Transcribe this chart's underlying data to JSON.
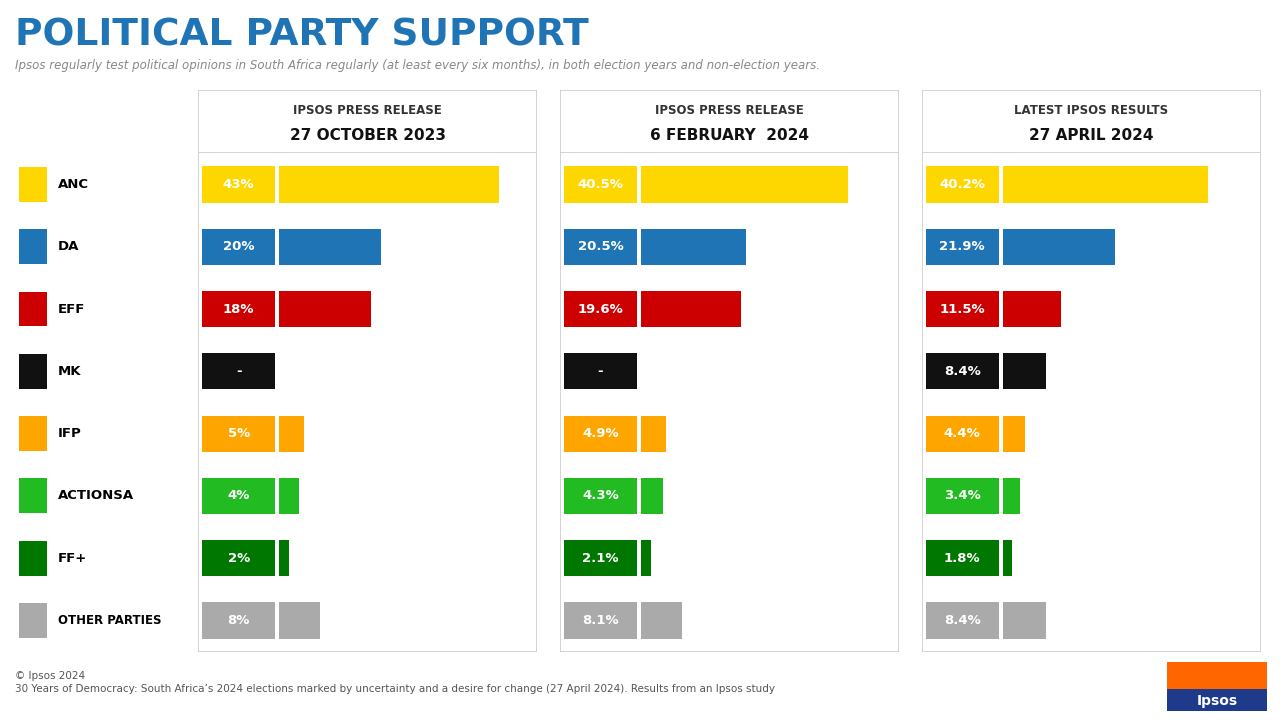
{
  "title": "POLITICAL PARTY SUPPORT",
  "subtitle": "Ipsos regularly test political opinions in South Africa regularly (at least every six months), in both election years and non-election years.",
  "footer_line1": "© Ipsos 2024",
  "footer_line2": "30 Years of Democracy: South Africa’s 2024 elections marked by uncertainty and a desire for change (27 April 2024). Results from an Ipsos study",
  "col_headers": [
    [
      "IPSOS PRESS RELEASE",
      "27 OCTOBER 2023"
    ],
    [
      "IPSOS PRESS RELEASE",
      "6 FEBRUARY  2024"
    ],
    [
      "LATEST IPSOS RESULTS",
      "27 APRIL 2024"
    ]
  ],
  "parties": [
    "ANC",
    "DA",
    "EFF",
    "MK",
    "IFP",
    "ACTIONSA",
    "FF+",
    "OTHER PARTIES"
  ],
  "party_colors": [
    "#FFD700",
    "#1F74B5",
    "#CC0000",
    "#111111",
    "#FFA500",
    "#22BB22",
    "#007700",
    "#AAAAAA"
  ],
  "values": [
    [
      43,
      20,
      18,
      0,
      5,
      4,
      2,
      8
    ],
    [
      40.5,
      20.5,
      19.6,
      0,
      4.9,
      4.3,
      2.1,
      8.1
    ],
    [
      40.2,
      21.9,
      11.5,
      8.4,
      4.4,
      3.4,
      1.8,
      8.4
    ]
  ],
  "labels": [
    [
      "43%",
      "20%",
      "18%",
      "-",
      "5%",
      "4%",
      "2%",
      "8%"
    ],
    [
      "40.5%",
      "20.5%",
      "19.6%",
      "-",
      "4.9%",
      "4.3%",
      "2.1%",
      "8.1%"
    ],
    [
      "40.2%",
      "21.9%",
      "11.5%",
      "8.4%",
      "4.4%",
      "3.4%",
      "1.8%",
      "8.4%"
    ]
  ],
  "max_value": 50,
  "title_color": "#1F74B5",
  "subtitle_color": "#888888",
  "bg_color": "#FFFFFF",
  "party_label_color": "#000000",
  "border_color": "#CCCCCC"
}
